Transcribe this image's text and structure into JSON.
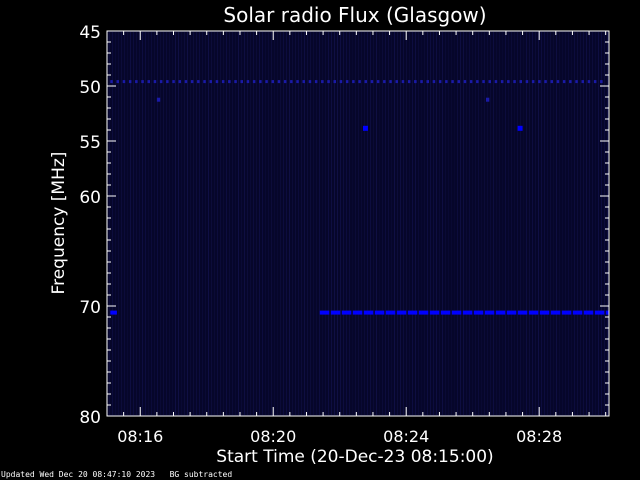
{
  "footer": {
    "updated": "Updated Wed Dec 20 08:47:10 2023",
    "note": "BG subtracted"
  },
  "chart_data": {
    "type": "heatmap",
    "title": "Solar radio Flux (Glasgow)",
    "xlabel": "Start Time (20-Dec-23 08:15:00)",
    "ylabel": "Frequency [MHz]",
    "x_unit": "minutes after 08:15:00",
    "xlim": [
      0.0,
      15.1
    ],
    "ylim": [
      45,
      80
    ],
    "y_ticks": [
      45,
      50,
      55,
      60,
      70,
      80
    ],
    "x_ticks": [
      {
        "t": 1,
        "label": "08:16"
      },
      {
        "t": 5,
        "label": "08:20"
      },
      {
        "t": 9,
        "label": "08:24"
      },
      {
        "t": 13,
        "label": "08:28"
      }
    ],
    "background_color": "#06062a",
    "colors": {
      "axes": "#ffffff",
      "signal": "#0000ff",
      "signal_weak": "#1a1aa8"
    },
    "features": [
      {
        "freq": 49.6,
        "t_start": 0.1,
        "t_end": 14.9,
        "intensity": "medium",
        "pattern": "dashed"
      },
      {
        "freq": 70.6,
        "t_start": 6.4,
        "t_end": 15.1,
        "intensity": "strong",
        "pattern": "solid"
      },
      {
        "freq": 70.6,
        "t_start": 0.1,
        "t_end": 0.3,
        "intensity": "strong",
        "pattern": "solid"
      },
      {
        "freq": 51.2,
        "t_start": 1.5,
        "t_end": 1.6,
        "intensity": "medium",
        "pattern": "point"
      },
      {
        "freq": 53.8,
        "t_start": 7.7,
        "t_end": 7.85,
        "intensity": "strong",
        "pattern": "point"
      },
      {
        "freq": 53.8,
        "t_start": 12.35,
        "t_end": 12.5,
        "intensity": "strong",
        "pattern": "point"
      },
      {
        "freq": 51.2,
        "t_start": 11.4,
        "t_end": 11.5,
        "intensity": "medium",
        "pattern": "point"
      }
    ]
  }
}
